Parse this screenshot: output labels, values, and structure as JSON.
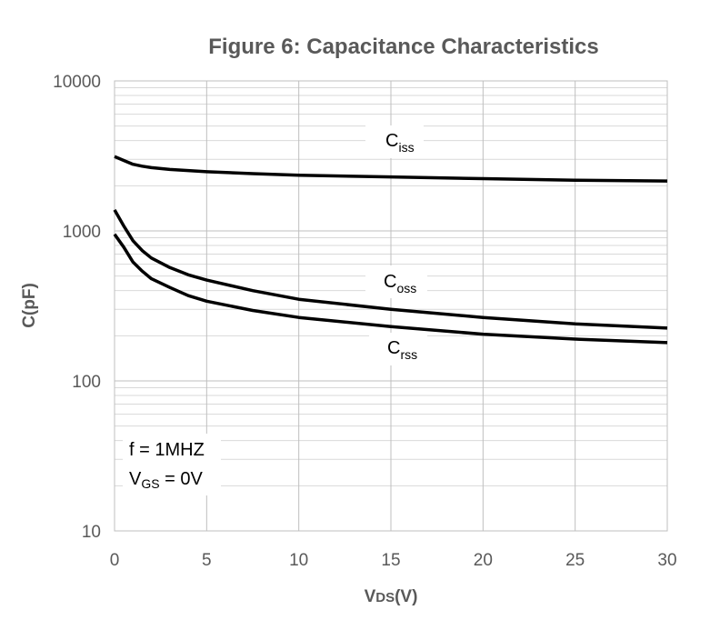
{
  "chart_data": {
    "type": "line",
    "title": "Figure 6: Capacitance Characteristics",
    "xlabel": {
      "main": "V",
      "sub": "DS",
      "suffix": "(V)"
    },
    "ylabel": "C(pF)",
    "xlim": [
      0,
      30
    ],
    "ylim": [
      10,
      10000
    ],
    "yscale": "log",
    "grid": true,
    "xticks": [
      "0",
      "5",
      "10",
      "15",
      "20",
      "25",
      "30"
    ],
    "yticks": [
      "10",
      "100",
      "1000",
      "10000"
    ],
    "series": [
      {
        "name": "Ciss",
        "label_main": "C",
        "label_sub": "iss",
        "x": [
          0,
          0.5,
          1,
          1.5,
          2,
          3,
          5,
          7.5,
          10,
          15,
          20,
          25,
          30
        ],
        "y": [
          3130,
          2950,
          2780,
          2700,
          2640,
          2570,
          2480,
          2410,
          2350,
          2290,
          2230,
          2180,
          2150
        ]
      },
      {
        "name": "Coss",
        "label_main": "C",
        "label_sub": "oss",
        "x": [
          0,
          0.5,
          1,
          1.5,
          2,
          3,
          4,
          5,
          7.5,
          10,
          15,
          20,
          25,
          30
        ],
        "y": [
          1380,
          1080,
          860,
          740,
          660,
          570,
          510,
          470,
          400,
          350,
          300,
          265,
          240,
          225
        ]
      },
      {
        "name": "Crss",
        "label_main": "C",
        "label_sub": "rss",
        "x": [
          0,
          0.5,
          1,
          1.5,
          2,
          3,
          4,
          5,
          7.5,
          10,
          15,
          20,
          25,
          30
        ],
        "y": [
          950,
          780,
          620,
          540,
          480,
          420,
          370,
          340,
          295,
          265,
          230,
          205,
          190,
          180
        ]
      }
    ],
    "annotations": {
      "frequency": "f = 1MHZ",
      "vgs": {
        "main": "V",
        "sub": "GS",
        "suffix": " = 0V"
      }
    }
  }
}
